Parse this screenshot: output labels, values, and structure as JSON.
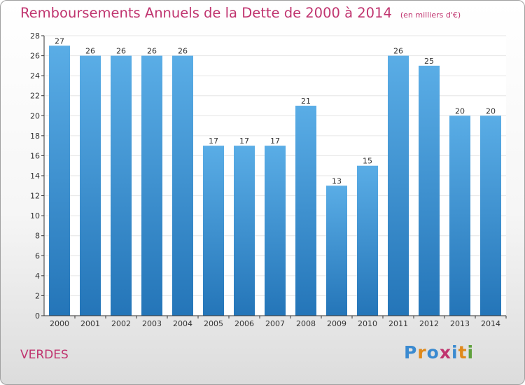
{
  "title": "Remboursements Annuels de la Dette de 2000 à 2014",
  "subtitle": "(en milliers d'€)",
  "place": "VERDES",
  "logo": {
    "letters": [
      "P",
      "r",
      "o",
      "x",
      "i",
      "t",
      "i"
    ],
    "colors": [
      "#3a8ad0",
      "#e0891a",
      "#3a8ad0",
      "#c0346f",
      "#3a8ad0",
      "#e0891a",
      "#5fa03c"
    ]
  },
  "colors": {
    "bar_top": "#5aade6",
    "bar_bottom": "#2475b8",
    "title": "#c0346f",
    "axis": "#333333",
    "grid": "#e6e6e6"
  },
  "chart_data": {
    "type": "bar",
    "title": "Remboursements Annuels de la Dette de 2000 à 2014",
    "subtitle": "(en milliers d'€)",
    "categories": [
      "2000",
      "2001",
      "2002",
      "2003",
      "2004",
      "2005",
      "2006",
      "2007",
      "2008",
      "2009",
      "2010",
      "2011",
      "2012",
      "2013",
      "2014"
    ],
    "values": [
      27,
      26,
      26,
      26,
      26,
      17,
      17,
      17,
      21,
      13,
      15,
      26,
      25,
      20,
      20
    ],
    "ylim": [
      0,
      28
    ],
    "yticks": [
      0,
      2,
      4,
      6,
      8,
      10,
      12,
      14,
      16,
      18,
      20,
      22,
      24,
      26,
      28
    ],
    "grid": true,
    "legend": "none"
  }
}
